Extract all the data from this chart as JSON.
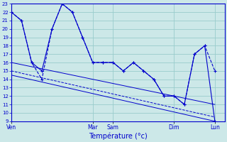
{
  "background_color": "#cce8e8",
  "grid_color": "#99cccc",
  "line_color": "#0000cc",
  "xlabel": "Température (°c)",
  "ylim": [
    9,
    23
  ],
  "yticks": [
    9,
    10,
    11,
    12,
    13,
    14,
    15,
    16,
    17,
    18,
    19,
    20,
    21,
    22,
    23
  ],
  "xlim": [
    0,
    21
  ],
  "x_tick_positions": [
    0,
    8,
    10,
    16,
    20
  ],
  "x_tick_labels": [
    "Ven",
    "Mar",
    "Sam",
    "Dim",
    "Lun"
  ],
  "series1_x": [
    0,
    1,
    2,
    3,
    4,
    5,
    6,
    7,
    8,
    9,
    10,
    11,
    12,
    13,
    14,
    15,
    16,
    17,
    18,
    19,
    20
  ],
  "series1_y": [
    22,
    21,
    16,
    14,
    20,
    23,
    22,
    19,
    16,
    16,
    16,
    15,
    16,
    15,
    14,
    12,
    12,
    11,
    17,
    18,
    15
  ],
  "series2_x": [
    0,
    1,
    2,
    3,
    4,
    5,
    6,
    7,
    8,
    9,
    10,
    11,
    12,
    13,
    14,
    15,
    16,
    17,
    18,
    19,
    20
  ],
  "series2_y": [
    22,
    21,
    16,
    15,
    20,
    23,
    22,
    19,
    16,
    16,
    16,
    15,
    16,
    15,
    14,
    12,
    12,
    11,
    17,
    18,
    9
  ],
  "trend1_x": [
    0,
    20
  ],
  "trend1_y": [
    16.0,
    11.0
  ],
  "trend2_x": [
    0,
    20
  ],
  "trend2_y": [
    15.0,
    9.5
  ],
  "trend3_x": [
    0,
    20
  ],
  "trend3_y": [
    14.5,
    9.0
  ]
}
